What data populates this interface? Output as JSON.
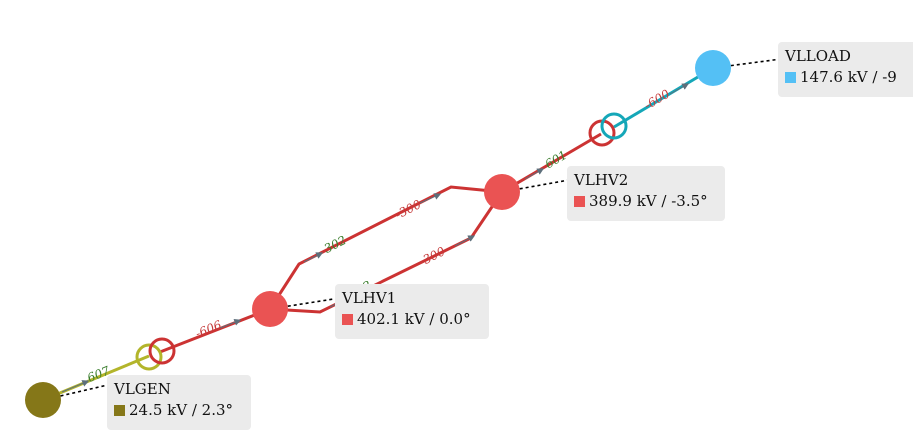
{
  "colors": {
    "gen": "#857718",
    "hv": "#ea5353",
    "hv_line": "#cc3333",
    "load": "#54c0f5",
    "load_line": "#15a7b8",
    "gen_line": "#b3b52b",
    "arrow": "#5d6f7b",
    "flow_green": "#3a7d2c",
    "flow_red": "#c53a3a"
  },
  "buses": {
    "vlgen": {
      "name": "VLGEN",
      "value": "24.5 kV / 2.3°"
    },
    "vlhv1": {
      "name": "VLHV1",
      "value": "402.1 kV / 0.0°"
    },
    "vlhv2": {
      "name": "VLHV2",
      "value": "389.9 kV / -3.5°"
    },
    "vlload": {
      "name": "VLLOAD",
      "value": "147.6 kV / -9"
    }
  },
  "flows": {
    "gen_side": "607",
    "hv1_side": "-606",
    "line1_from": "302",
    "line1_to": "-300",
    "line2_from": "302",
    "line2_to": "-300",
    "hv2_side": "601",
    "load_side": "-600"
  }
}
